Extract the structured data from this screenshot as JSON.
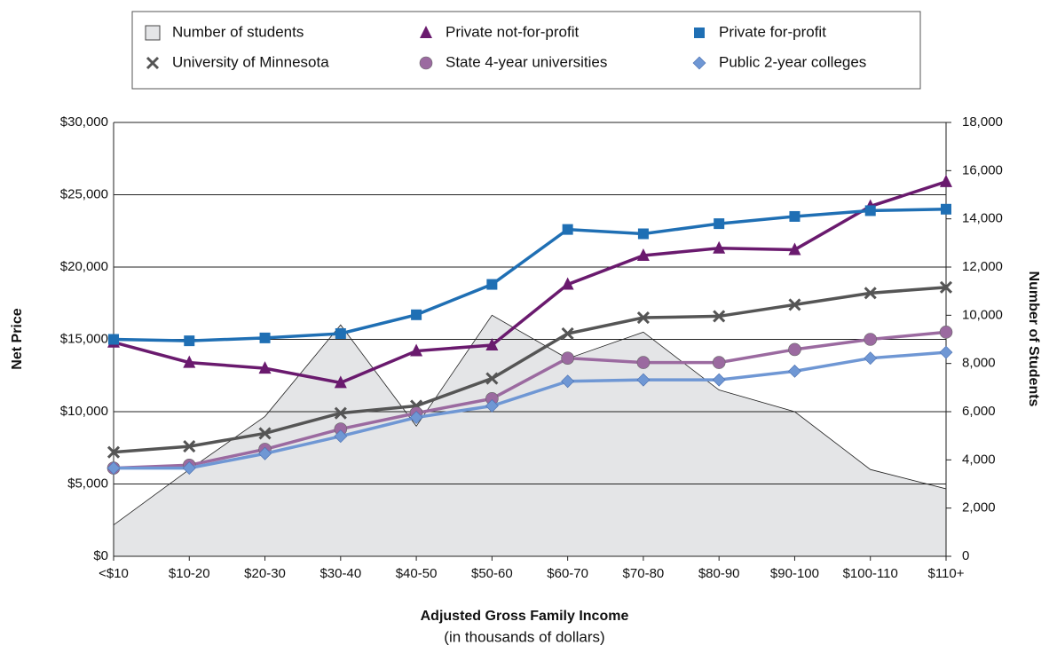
{
  "chart_data": {
    "type": "line",
    "x_label": "Adjusted Gross Family Income",
    "x_sublabel": "(in thousands of dollars)",
    "y_label": "Net Price",
    "y2_label": "Number of Students",
    "categories": [
      "<$10",
      "$10-20",
      "$20-30",
      "$30-40",
      "$40-50",
      "$50-60",
      "$60-70",
      "$70-80",
      "$80-90",
      "$90-100",
      "$100-110",
      "$110+"
    ],
    "ylim": [
      0,
      30000
    ],
    "yticks": [
      {
        "value": 0,
        "label": "$0"
      },
      {
        "value": 5000,
        "label": "$5,000"
      },
      {
        "value": 10000,
        "label": "$10,000"
      },
      {
        "value": 15000,
        "label": "$15,000"
      },
      {
        "value": 20000,
        "label": "$20,000"
      },
      {
        "value": 25000,
        "label": "$25,000"
      },
      {
        "value": 30000,
        "label": "$30,000"
      }
    ],
    "y2lim": [
      0,
      18000
    ],
    "y2ticks": [
      0,
      {
        "value": 2000,
        "label": "2,000"
      },
      {
        "value": 4000,
        "label": "4,000"
      },
      {
        "value": 6000,
        "label": "6,000"
      },
      {
        "value": 8000,
        "label": "8,000"
      },
      {
        "value": 10000,
        "label": "10,000"
      },
      {
        "value": 12000,
        "label": "12,000"
      },
      {
        "value": 14000,
        "label": "14,000"
      },
      {
        "value": 16000,
        "label": "16,000"
      },
      {
        "value": 18000,
        "label": "18,000"
      }
    ],
    "grid": true,
    "legend": "top",
    "series": [
      {
        "name": "Number of students",
        "color": "#e4e5e7",
        "marker": "area",
        "axis": "y2",
        "values": [
          1300,
          3600,
          5800,
          9600,
          5400,
          10000,
          8200,
          9300,
          6900,
          6000,
          3600,
          2800
        ]
      },
      {
        "name": "Private not-for-profit",
        "color": "#6a1a6e",
        "marker": "triangle",
        "values": [
          14800,
          13400,
          13000,
          12000,
          14200,
          14600,
          18800,
          20800,
          21300,
          21200,
          24200,
          25900
        ]
      },
      {
        "name": "Private for-profit",
        "color": "#1f6fb4",
        "marker": "square",
        "values": [
          15000,
          14900,
          15100,
          15400,
          16700,
          18800,
          22600,
          22300,
          23000,
          23500,
          23900,
          24000
        ]
      },
      {
        "name": "University of Minnesota",
        "color": "#555555",
        "marker": "x",
        "values": [
          7200,
          7600,
          8500,
          9900,
          10400,
          12300,
          15400,
          16500,
          16600,
          17400,
          18200,
          18600
        ]
      },
      {
        "name": "State 4-year universities",
        "color": "#9b6aa0",
        "marker": "circle",
        "values": [
          6100,
          6300,
          7400,
          8800,
          9900,
          10900,
          13700,
          13400,
          13400,
          14300,
          15000,
          15500
        ]
      },
      {
        "name": "Public 2-year colleges",
        "color": "#6f97d4",
        "marker": "diamond",
        "values": [
          6100,
          6100,
          7100,
          8300,
          9600,
          10400,
          12100,
          12200,
          12200,
          12800,
          13700,
          14100
        ]
      }
    ]
  }
}
